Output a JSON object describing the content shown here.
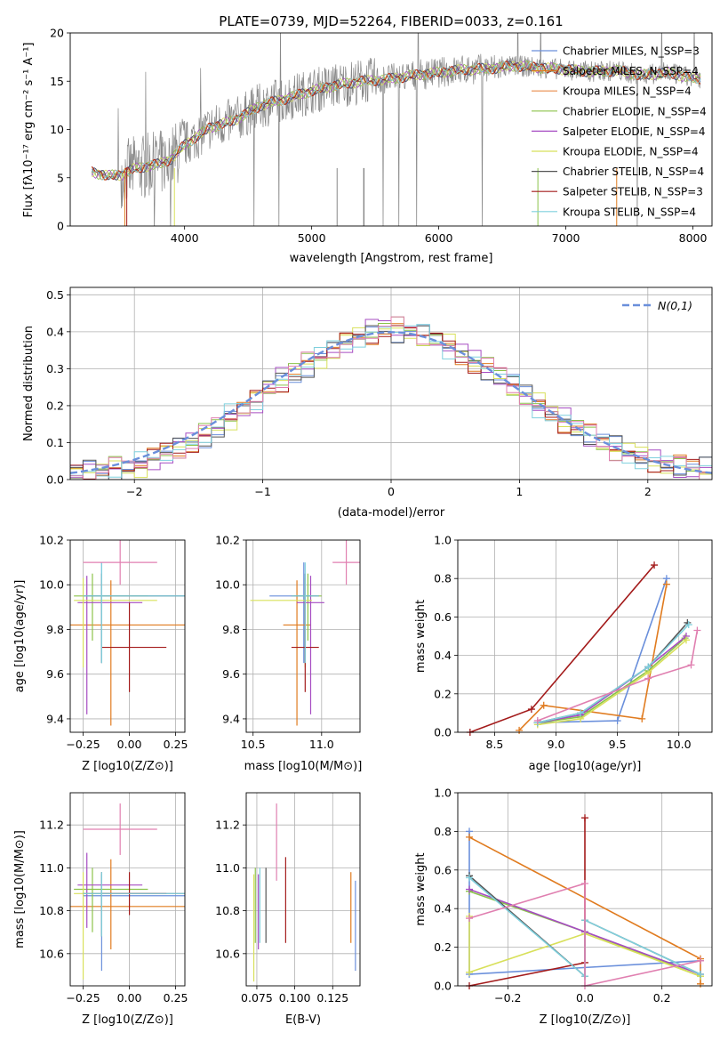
{
  "colors": [
    "#6a8fdb",
    "#e07b1f",
    "#e88b4a",
    "#8bc34a",
    "#a64cc2",
    "#d8e05a",
    "#555555",
    "#a31b1b",
    "#7fd0dd",
    "#e07fb0"
  ],
  "chart_data": [
    {
      "id": "spectrum",
      "type": "line",
      "title": "PLATE=0739, MJD=52264, FIBERID=0033, z=0.161",
      "xlabel": "wavelength [Angstrom, rest frame]",
      "ylabel": "Flux [fλ10⁻¹⁷ erg cm⁻² s⁻¹ A⁻¹]",
      "xlim": [
        3100,
        8150
      ],
      "ylim": [
        0,
        20
      ],
      "xticks": [
        4000,
        5000,
        6000,
        7000,
        8000
      ],
      "yticks": [
        0,
        5,
        10,
        15,
        20
      ],
      "legend_position": "top-right",
      "legend": [
        "Chabrier MILES, N_SSP=3",
        "Salpeter MILES, N_SSP=4",
        "Kroupa MILES, N_SSP=4",
        "Chabrier ELODIE, N_SSP=4",
        "Salpeter ELODIE, N_SSP=4",
        "Kroupa ELODIE, N_SSP=4",
        "Chabrier STELIB, N_SSP=4",
        "Salpeter STELIB, N_SSP=3",
        "Kroupa STELIB, N_SSP=4"
      ],
      "legend_colors": [
        "#6a8fdb",
        "#e07b1f",
        "#e88b4a",
        "#8bc34a",
        "#a64cc2",
        "#d8e05a",
        "#555555",
        "#a31b1b",
        "#7fd0dd"
      ],
      "continuum": [
        [
          3270,
          5.6
        ],
        [
          3400,
          5.2
        ],
        [
          3500,
          5.3
        ],
        [
          3600,
          5.9
        ],
        [
          3700,
          6.2
        ],
        [
          3800,
          6.4
        ],
        [
          3900,
          7.0
        ],
        [
          4000,
          8.4
        ],
        [
          4200,
          10.2
        ],
        [
          4400,
          11.0
        ],
        [
          4600,
          12.5
        ],
        [
          4800,
          13.2
        ],
        [
          5000,
          14.0
        ],
        [
          5200,
          14.6
        ],
        [
          5400,
          15.0
        ],
        [
          5600,
          15.2
        ],
        [
          5800,
          15.6
        ],
        [
          6000,
          15.9
        ],
        [
          6200,
          16.2
        ],
        [
          6400,
          16.3
        ],
        [
          6600,
          16.6
        ],
        [
          6800,
          16.4
        ],
        [
          7000,
          16.2
        ],
        [
          7200,
          16.0
        ],
        [
          7400,
          16.1
        ],
        [
          7600,
          15.6
        ],
        [
          7800,
          15.9
        ],
        [
          8000,
          15.3
        ]
      ]
    },
    {
      "id": "residuals",
      "type": "line",
      "xlabel": "(data-model)/error",
      "ylabel": "Normed distribution",
      "xlim": [
        -2.5,
        2.5
      ],
      "ylim": [
        0,
        0.52
      ],
      "xticks": [
        -2,
        -1,
        0,
        1,
        2
      ],
      "yticks": [
        0.0,
        0.1,
        0.2,
        0.3,
        0.4,
        0.5
      ],
      "grid": true,
      "legend_position": "top-right",
      "reference": {
        "name": "N(0,1)",
        "style": "dashed",
        "color": "#6a8fdb"
      },
      "bin_width": 0.1,
      "hist_ref": [
        0.02,
        0.02,
        0.025,
        0.03,
        0.035,
        0.04,
        0.055,
        0.07,
        0.085,
        0.1,
        0.12,
        0.14,
        0.17,
        0.19,
        0.21,
        0.25,
        0.27,
        0.29,
        0.31,
        0.33,
        0.35,
        0.37,
        0.385,
        0.4,
        0.41,
        0.405,
        0.4,
        0.39,
        0.38,
        0.36,
        0.34,
        0.32,
        0.3,
        0.28,
        0.255,
        0.23,
        0.2,
        0.18,
        0.16,
        0.14,
        0.12,
        0.1,
        0.085,
        0.07,
        0.06,
        0.05,
        0.04,
        0.035,
        0.03,
        0.025
      ]
    },
    {
      "id": "age-vs-z",
      "type": "scatter",
      "xlabel": "Z [log10(Z/Z⊙)]",
      "ylabel": "age  [log10(age/yr)]",
      "xlim": [
        -0.32,
        0.3
      ],
      "ylim": [
        9.34,
        10.2
      ],
      "xticks": [
        -0.25,
        0.0,
        0.25
      ],
      "xticklabels": [
        "−0.25",
        "0.00",
        "0.25"
      ],
      "yticks": [
        9.4,
        9.6,
        9.8,
        10.0,
        10.2
      ],
      "grid": true,
      "points": [
        {
          "x": -0.15,
          "y": 9.95,
          "xerr": [
            0.1,
            0.45
          ],
          "yerr": [
            0.3,
            0.15
          ],
          "c": 0
        },
        {
          "x": -0.1,
          "y": 9.82,
          "xerr": [
            0.25,
            0.4
          ],
          "yerr": [
            0.45,
            0.2
          ],
          "c": 1
        },
        {
          "x": -0.2,
          "y": 9.95,
          "xerr": [
            0.1,
            0.3
          ],
          "yerr": [
            0.2,
            0.1
          ],
          "c": 3
        },
        {
          "x": -0.23,
          "y": 9.92,
          "xerr": [
            0.05,
            0.3
          ],
          "yerr": [
            0.5,
            0.12
          ],
          "c": 4
        },
        {
          "x": -0.25,
          "y": 9.93,
          "xerr": [
            0.05,
            0.4
          ],
          "yerr": [
            0.3,
            0.1
          ],
          "c": 5
        },
        {
          "x": -0.15,
          "y": 9.95,
          "xerr": [
            0.1,
            0.45
          ],
          "yerr": [
            0.3,
            0.1
          ],
          "c": 6
        },
        {
          "x": 0.0,
          "y": 9.72,
          "xerr": [
            0.15,
            0.2
          ],
          "yerr": [
            0.2,
            0.2
          ],
          "c": 7
        },
        {
          "x": -0.15,
          "y": 9.95,
          "xerr": [
            0.1,
            0.45
          ],
          "yerr": [
            0.3,
            0.15
          ],
          "c": 8
        },
        {
          "x": -0.05,
          "y": 10.1,
          "xerr": [
            0.2,
            0.2
          ],
          "yerr": [
            0.1,
            0.1
          ],
          "c": 9
        }
      ]
    },
    {
      "id": "age-vs-mass",
      "type": "scatter",
      "xlabel": "mass [log10(M/M⊙)]",
      "xlim": [
        10.45,
        11.28
      ],
      "ylim": [
        9.34,
        10.2
      ],
      "xticks": [
        10.5,
        11.0
      ],
      "xticklabels": [
        "10.5",
        "11.0"
      ],
      "yticks": [
        9.4,
        9.6,
        9.8,
        10.0,
        10.2
      ],
      "grid": true,
      "points": [
        {
          "x": 10.87,
          "y": 9.95,
          "xerr": [
            0.25,
            0.1
          ],
          "yerr": [
            0.3,
            0.15
          ],
          "c": 0
        },
        {
          "x": 10.82,
          "y": 9.82,
          "xerr": [
            0.1,
            0.1
          ],
          "yerr": [
            0.45,
            0.2
          ],
          "c": 1
        },
        {
          "x": 10.9,
          "y": 9.95,
          "xerr": [
            0.1,
            0.1
          ],
          "yerr": [
            0.2,
            0.1
          ],
          "c": 3
        },
        {
          "x": 10.92,
          "y": 9.92,
          "xerr": [
            0.1,
            0.1
          ],
          "yerr": [
            0.5,
            0.12
          ],
          "c": 4
        },
        {
          "x": 10.88,
          "y": 9.93,
          "xerr": [
            0.4,
            0.05
          ],
          "yerr": [
            0.3,
            0.1
          ],
          "c": 5
        },
        {
          "x": 10.88,
          "y": 9.95,
          "xerr": [
            0.1,
            0.1
          ],
          "yerr": [
            0.3,
            0.1
          ],
          "c": 6
        },
        {
          "x": 10.88,
          "y": 9.72,
          "xerr": [
            0.1,
            0.1
          ],
          "yerr": [
            0.2,
            0.2
          ],
          "c": 7
        },
        {
          "x": 10.88,
          "y": 9.95,
          "xerr": [
            0.1,
            0.1
          ],
          "yerr": [
            0.3,
            0.15
          ],
          "c": 8
        },
        {
          "x": 11.18,
          "y": 10.1,
          "xerr": [
            0.1,
            0.1
          ],
          "yerr": [
            0.1,
            0.1
          ],
          "c": 9
        }
      ]
    },
    {
      "id": "mass-weight-vs-age",
      "type": "line",
      "xlabel": "age  [log10(age/yr)]",
      "ylabel": "mass weight",
      "xlim": [
        8.2,
        10.27
      ],
      "ylim": [
        0,
        1.0
      ],
      "xticks": [
        8.5,
        9.0,
        9.5,
        10.0
      ],
      "xticklabels": [
        "8.5",
        "9.0",
        "9.5",
        "10.0"
      ],
      "yticks": [
        0.0,
        0.2,
        0.4,
        0.6,
        0.8,
        1.0
      ],
      "grid": true,
      "series": [
        {
          "c": 0,
          "x": [
            8.85,
            9.5,
            9.9
          ],
          "y": [
            0.05,
            0.06,
            0.8
          ]
        },
        {
          "c": 1,
          "x": [
            8.7,
            8.9,
            9.7,
            9.9
          ],
          "y": [
            0.01,
            0.14,
            0.07,
            0.77
          ]
        },
        {
          "c": 3,
          "x": [
            8.85,
            9.2,
            9.75,
            10.05
          ],
          "y": [
            0.05,
            0.08,
            0.32,
            0.49
          ]
        },
        {
          "c": 4,
          "x": [
            8.85,
            9.2,
            9.75,
            10.06
          ],
          "y": [
            0.05,
            0.09,
            0.34,
            0.5
          ]
        },
        {
          "c": 5,
          "x": [
            8.85,
            9.2,
            9.75,
            10.06
          ],
          "y": [
            0.04,
            0.07,
            0.31,
            0.48
          ]
        },
        {
          "c": 6,
          "x": [
            8.85,
            9.2,
            9.75,
            10.07
          ],
          "y": [
            0.05,
            0.1,
            0.34,
            0.57
          ]
        },
        {
          "c": 7,
          "x": [
            8.3,
            8.8,
            9.8
          ],
          "y": [
            0.0,
            0.12,
            0.87
          ]
        },
        {
          "c": 8,
          "x": [
            8.85,
            9.2,
            9.75,
            10.08
          ],
          "y": [
            0.05,
            0.1,
            0.34,
            0.56
          ]
        },
        {
          "c": 9,
          "x": [
            8.85,
            9.75,
            10.1,
            10.15
          ],
          "y": [
            0.06,
            0.28,
            0.35,
            0.53
          ]
        }
      ]
    },
    {
      "id": "mass-vs-z",
      "type": "scatter",
      "xlabel": "Z [log10(Z/Z⊙)]",
      "ylabel": "mass [log10(M/M⊙)]",
      "xlim": [
        -0.32,
        0.3
      ],
      "ylim": [
        10.45,
        11.35
      ],
      "xticks": [
        -0.25,
        0.0,
        0.25
      ],
      "xticklabels": [
        "−0.25",
        "0.00",
        "0.25"
      ],
      "yticks": [
        10.6,
        10.8,
        11.0,
        11.2
      ],
      "grid": true,
      "points": [
        {
          "x": -0.15,
          "y": 10.87,
          "xerr": [
            0.1,
            0.45
          ],
          "yerr": [
            0.35,
            0.1
          ],
          "c": 0
        },
        {
          "x": -0.1,
          "y": 10.82,
          "xerr": [
            0.25,
            0.4
          ],
          "yerr": [
            0.2,
            0.22
          ],
          "c": 1
        },
        {
          "x": -0.2,
          "y": 10.9,
          "xerr": [
            0.1,
            0.3
          ],
          "yerr": [
            0.2,
            0.1
          ],
          "c": 3
        },
        {
          "x": -0.23,
          "y": 10.92,
          "xerr": [
            0.05,
            0.3
          ],
          "yerr": [
            0.2,
            0.15
          ],
          "c": 4
        },
        {
          "x": -0.25,
          "y": 10.88,
          "xerr": [
            0.05,
            0.4
          ],
          "yerr": [
            0.4,
            0.1
          ],
          "c": 5
        },
        {
          "x": -0.15,
          "y": 10.88,
          "xerr": [
            0.1,
            0.45
          ],
          "yerr": [
            0.2,
            0.1
          ],
          "c": 6
        },
        {
          "x": 0.0,
          "y": 10.88,
          "xerr": [
            0.15,
            0.2
          ],
          "yerr": [
            0.1,
            0.1
          ],
          "c": 7
        },
        {
          "x": -0.15,
          "y": 10.88,
          "xerr": [
            0.1,
            0.45
          ],
          "yerr": [
            0.2,
            0.1
          ],
          "c": 8
        },
        {
          "x": -0.05,
          "y": 11.18,
          "xerr": [
            0.2,
            0.2
          ],
          "yerr": [
            0.12,
            0.12
          ],
          "c": 9
        }
      ]
    },
    {
      "id": "mass-vs-ebv",
      "type": "scatter",
      "xlabel": "E(B-V)",
      "xlim": [
        0.068,
        0.143
      ],
      "ylim": [
        10.45,
        11.35
      ],
      "xticks": [
        0.075,
        0.1,
        0.125
      ],
      "xticklabels": [
        "0.075",
        "0.100",
        "0.125"
      ],
      "yticks": [
        10.6,
        10.8,
        11.0,
        11.2
      ],
      "grid": true,
      "points": [
        {
          "x": 0.14,
          "y": 10.72,
          "yerr": [
            0.2,
            0.22
          ],
          "c": 0
        },
        {
          "x": 0.137,
          "y": 10.8,
          "yerr": [
            0.15,
            0.18
          ],
          "c": 1
        },
        {
          "x": 0.074,
          "y": 10.85,
          "yerr": [
            0.2,
            0.15
          ],
          "c": 3
        },
        {
          "x": 0.076,
          "y": 10.82,
          "yerr": [
            0.2,
            0.15
          ],
          "c": 4
        },
        {
          "x": 0.073,
          "y": 10.72,
          "yerr": [
            0.25,
            0.25
          ],
          "c": 5
        },
        {
          "x": 0.081,
          "y": 10.85,
          "yerr": [
            0.2,
            0.15
          ],
          "c": 6
        },
        {
          "x": 0.094,
          "y": 10.85,
          "yerr": [
            0.2,
            0.2
          ],
          "c": 7
        },
        {
          "x": 0.077,
          "y": 10.85,
          "yerr": [
            0.2,
            0.15
          ],
          "c": 8
        },
        {
          "x": 0.088,
          "y": 11.12,
          "yerr": [
            0.18,
            0.18
          ],
          "c": 9
        }
      ]
    },
    {
      "id": "mass-weight-vs-z",
      "type": "line",
      "xlabel": "Z [log10(Z/Z⊙)]",
      "ylabel": "mass weight",
      "xlim": [
        -0.33,
        0.33
      ],
      "ylim": [
        0,
        1.0
      ],
      "xticks": [
        -0.2,
        0.0,
        0.2
      ],
      "xticklabels": [
        "−0.2",
        "0.0",
        "0.2"
      ],
      "yticks": [
        0.0,
        0.2,
        0.4,
        0.6,
        0.8,
        1.0
      ],
      "grid": true,
      "series": [
        {
          "c": 0,
          "x": [
            -0.3,
            -0.3,
            0.3
          ],
          "y": [
            0.8,
            0.06,
            0.13
          ]
        },
        {
          "c": 1,
          "x": [
            -0.3,
            0.3,
            0.3
          ],
          "y": [
            0.77,
            0.14,
            0.01
          ]
        },
        {
          "c": 3,
          "x": [
            -0.3,
            0.0,
            0.3
          ],
          "y": [
            0.49,
            0.28,
            0.05
          ]
        },
        {
          "c": 4,
          "x": [
            -0.3,
            0.0,
            0.3
          ],
          "y": [
            0.5,
            0.28,
            0.06
          ]
        },
        {
          "c": 5,
          "x": [
            -0.3,
            -0.3,
            0.0,
            0.3
          ],
          "y": [
            0.36,
            0.07,
            0.27,
            0.05
          ]
        },
        {
          "c": 6,
          "x": [
            -0.3,
            0.0,
            0.0,
            0.3
          ],
          "y": [
            0.57,
            0.05,
            0.34,
            0.06
          ]
        },
        {
          "c": 7,
          "x": [
            -0.3,
            0.0,
            0.0
          ],
          "y": [
            0.0,
            0.12,
            0.87
          ]
        },
        {
          "c": 8,
          "x": [
            -0.3,
            0.0,
            0.0,
            0.3
          ],
          "y": [
            0.56,
            0.05,
            0.34,
            0.06
          ]
        },
        {
          "c": 9,
          "x": [
            -0.3,
            0.0,
            0.0,
            0.3
          ],
          "y": [
            0.35,
            0.53,
            0.0,
            0.13
          ]
        }
      ]
    }
  ]
}
